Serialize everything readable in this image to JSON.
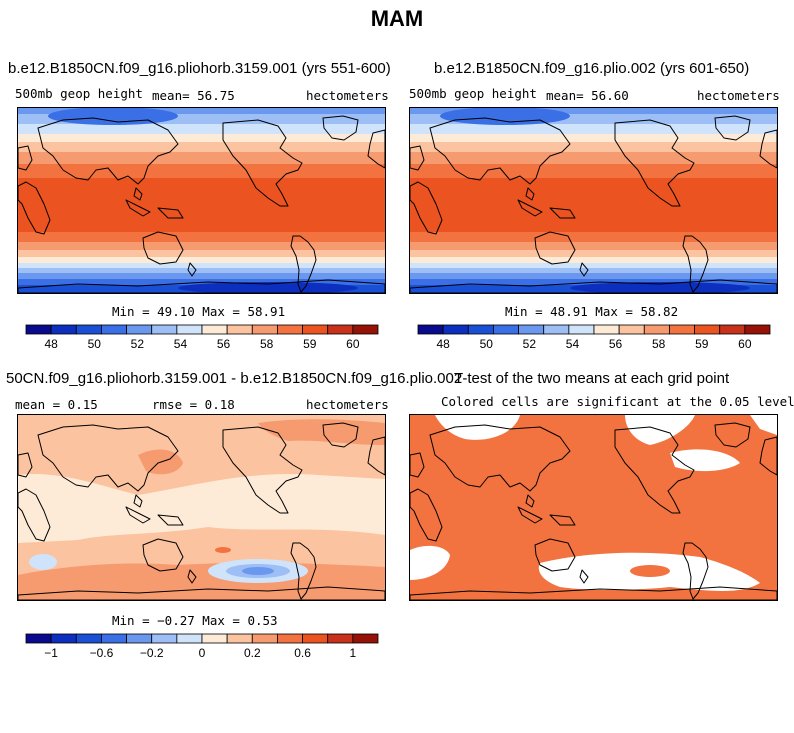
{
  "figure": {
    "title": "MAM"
  },
  "panels": {
    "p1": {
      "title": "b.e12.B1850CN.f09_g16.pliohorb.3159.001 (yrs 551-600)",
      "left_label": "500mb geop height",
      "center_label": "mean=  56.75",
      "right_label": "hectometers",
      "minmax": "Min =  49.10 Max =  58.91"
    },
    "p2": {
      "title": "b.e12.B1850CN.f09_g16.plio.002 (yrs 601-650)",
      "left_label": "500mb geop height",
      "center_label": "mean=  56.60",
      "right_label": "hectometers",
      "minmax": "Min =  48.91 Max =  58.82"
    },
    "p3": {
      "title": "50CN.f09_g16.pliohorb.3159.001 - b.e12.B1850CN.f09_g16.plio.002",
      "left_label": "mean =   0.15",
      "center_label": "rmse =   0.18",
      "right_label": "hectometers",
      "minmax": "Min = −0.27 Max =   0.53"
    },
    "p4": {
      "title": "T-test of the two means at each grid point",
      "subtitle": "Colored cells are significant at the 0.05 level"
    }
  },
  "colorbars": {
    "abs": {
      "colors": [
        "#0a0a8c",
        "#0d2fbf",
        "#1a50d6",
        "#3a6fe6",
        "#6a98ee",
        "#9ebff5",
        "#cfe3fb",
        "#fdebd8",
        "#fbc39f",
        "#f69a6f",
        "#f2733f",
        "#eb5320",
        "#c8321a",
        "#961206"
      ],
      "labels": [
        "48",
        "50",
        "52",
        "54",
        "56",
        "58",
        "59",
        "60"
      ]
    },
    "diff": {
      "colors": [
        "#0a0a8c",
        "#0d2fbf",
        "#1a50d6",
        "#3a6fe6",
        "#6a98ee",
        "#9ebff5",
        "#cfe3fb",
        "#fdebd8",
        "#fbc39f",
        "#f69a6f",
        "#f2733f",
        "#eb5320",
        "#c8321a",
        "#961206"
      ],
      "labels": [
        "−1",
        "−0.6",
        "−0.2",
        "0",
        "0.2",
        "0.6",
        "1"
      ]
    }
  },
  "significant_color": "#f2733f"
}
